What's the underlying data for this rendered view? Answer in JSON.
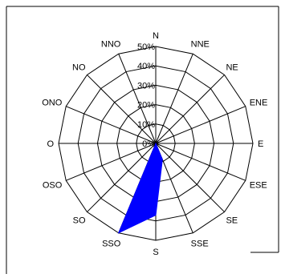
{
  "chart_data": {
    "type": "radar",
    "title": "",
    "directions": [
      "N",
      "NNE",
      "NE",
      "ENE",
      "E",
      "ESE",
      "SE",
      "SSE",
      "S",
      "SSO",
      "SO",
      "OSO",
      "O",
      "ONO",
      "NO",
      "NNO"
    ],
    "radial_ticks": [
      "0%",
      "10%",
      "20%",
      "30%",
      "40%",
      "50%"
    ],
    "rlim": [
      0,
      50
    ],
    "grid": true,
    "series": [
      {
        "values": [
          0,
          0,
          0,
          0,
          0,
          0,
          0,
          9,
          37,
          50,
          0,
          0,
          0,
          0,
          0,
          0
        ],
        "color": "#0000ff"
      }
    ]
  }
}
